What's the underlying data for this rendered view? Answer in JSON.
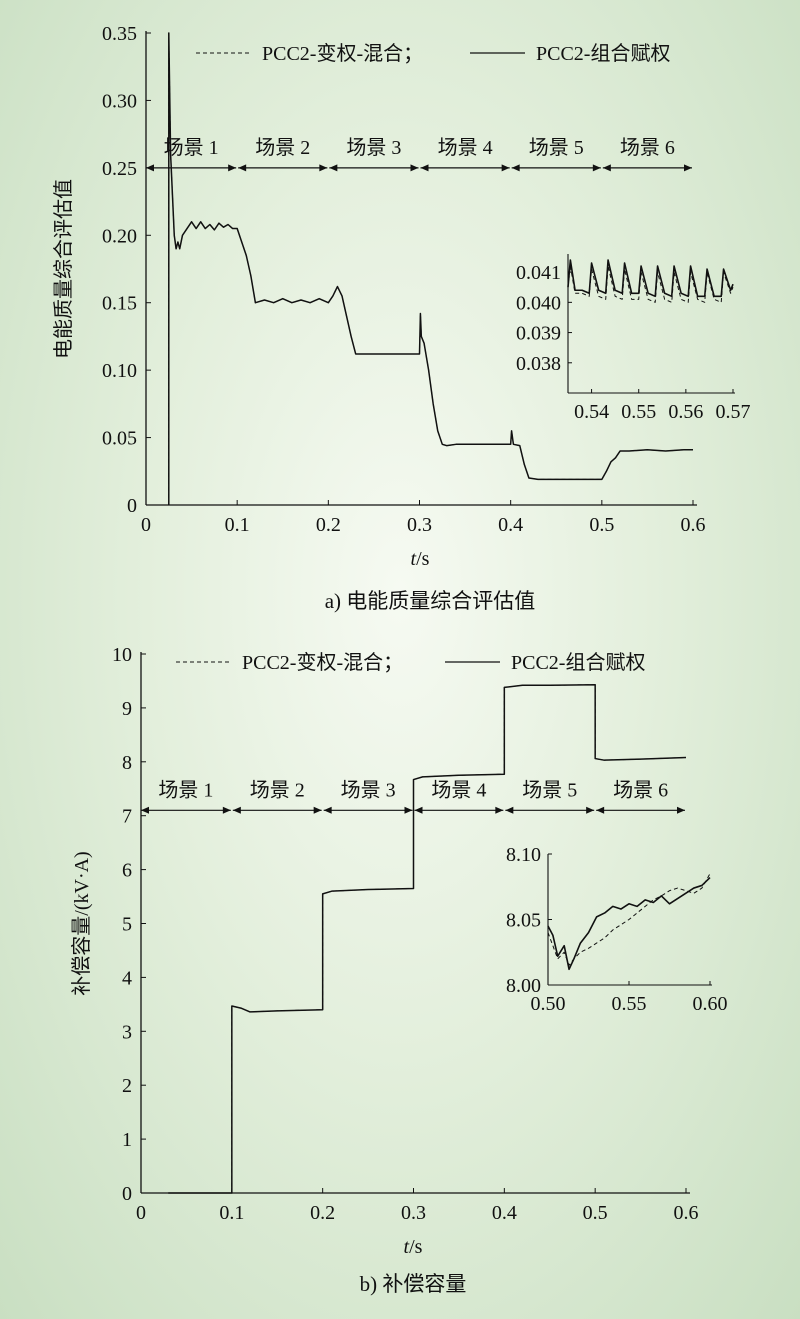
{
  "chart_data": [
    {
      "type": "line",
      "caption": "a) 电能质量综合评估值",
      "xlabel_italic": "t",
      "xlabel_unit": "/s",
      "ylabel": "电能质量综合评估值",
      "xlim": [
        0,
        0.6
      ],
      "ylim": [
        0,
        0.35
      ],
      "xticks": [
        "0",
        "0.1",
        "0.2",
        "0.3",
        "0.4",
        "0.5",
        "0.6"
      ],
      "yticks": [
        "0",
        "0.05",
        "0.10",
        "0.15",
        "0.20",
        "0.25",
        "0.30",
        "0.35"
      ],
      "legend": [
        "PCC2-变权-混合；",
        "PCC2-组合赋权"
      ],
      "scenes": [
        "场景 1",
        "场景 2",
        "场景 3",
        "场景 4",
        "场景 5",
        "场景 6"
      ],
      "scene_bounds": [
        0,
        0.1,
        0.2,
        0.3,
        0.4,
        0.5,
        0.6
      ],
      "scene_arrow_y": 0.25,
      "series": [
        {
          "name": "PCC2-组合赋权",
          "style": "solid",
          "x": [
            0.025,
            0.025,
            0.027,
            0.029,
            0.031,
            0.033,
            0.035,
            0.037,
            0.04,
            0.045,
            0.05,
            0.055,
            0.06,
            0.065,
            0.07,
            0.075,
            0.08,
            0.085,
            0.09,
            0.095,
            0.1,
            0.105,
            0.11,
            0.115,
            0.12,
            0.13,
            0.14,
            0.15,
            0.16,
            0.17,
            0.18,
            0.19,
            0.2,
            0.205,
            0.21,
            0.215,
            0.22,
            0.225,
            0.23,
            0.24,
            0.25,
            0.26,
            0.27,
            0.28,
            0.29,
            0.3,
            0.301,
            0.302,
            0.305,
            0.31,
            0.315,
            0.32,
            0.325,
            0.33,
            0.34,
            0.35,
            0.36,
            0.37,
            0.38,
            0.39,
            0.4,
            0.401,
            0.403,
            0.41,
            0.415,
            0.42,
            0.43,
            0.44,
            0.45,
            0.46,
            0.47,
            0.48,
            0.49,
            0.5,
            0.505,
            0.51,
            0.515,
            0.52,
            0.53,
            0.55,
            0.57,
            0.59,
            0.6
          ],
          "y": [
            0,
            0.35,
            0.26,
            0.23,
            0.2,
            0.19,
            0.195,
            0.19,
            0.2,
            0.205,
            0.21,
            0.205,
            0.21,
            0.205,
            0.208,
            0.204,
            0.209,
            0.206,
            0.208,
            0.205,
            0.205,
            0.195,
            0.185,
            0.17,
            0.15,
            0.152,
            0.15,
            0.153,
            0.15,
            0.152,
            0.15,
            0.153,
            0.15,
            0.155,
            0.162,
            0.155,
            0.14,
            0.125,
            0.112,
            0.112,
            0.112,
            0.112,
            0.112,
            0.112,
            0.112,
            0.112,
            0.142,
            0.125,
            0.12,
            0.1,
            0.075,
            0.055,
            0.045,
            0.044,
            0.045,
            0.045,
            0.045,
            0.045,
            0.045,
            0.045,
            0.045,
            0.055,
            0.045,
            0.044,
            0.03,
            0.02,
            0.019,
            0.019,
            0.019,
            0.019,
            0.019,
            0.019,
            0.019,
            0.019,
            0.025,
            0.032,
            0.035,
            0.04,
            0.04,
            0.041,
            0.04,
            0.041,
            0.041
          ]
        },
        {
          "name": "PCC2-变权-混合；",
          "style": "dashed",
          "x": [
            0.025,
            0.025,
            0.027,
            0.029,
            0.031,
            0.033,
            0.035,
            0.037,
            0.04,
            0.045,
            0.05,
            0.055,
            0.06,
            0.065,
            0.07,
            0.075,
            0.08,
            0.085,
            0.09,
            0.095,
            0.1,
            0.105,
            0.11,
            0.115,
            0.12,
            0.13,
            0.14,
            0.15,
            0.16,
            0.17,
            0.18,
            0.19,
            0.2,
            0.205,
            0.21,
            0.215,
            0.22,
            0.225,
            0.23,
            0.24,
            0.25,
            0.26,
            0.27,
            0.28,
            0.29,
            0.3,
            0.301,
            0.302,
            0.305,
            0.31,
            0.315,
            0.32,
            0.325,
            0.33,
            0.34,
            0.35,
            0.36,
            0.37,
            0.38,
            0.39,
            0.4,
            0.401,
            0.403,
            0.41,
            0.415,
            0.42,
            0.43,
            0.44,
            0.45,
            0.46,
            0.47,
            0.48,
            0.49,
            0.5,
            0.505,
            0.51,
            0.515,
            0.52,
            0.53,
            0.55,
            0.57,
            0.59,
            0.6
          ],
          "y": [
            0,
            0.35,
            0.26,
            0.23,
            0.2,
            0.19,
            0.195,
            0.19,
            0.2,
            0.205,
            0.21,
            0.205,
            0.21,
            0.205,
            0.208,
            0.204,
            0.209,
            0.206,
            0.208,
            0.205,
            0.205,
            0.195,
            0.185,
            0.17,
            0.15,
            0.152,
            0.15,
            0.153,
            0.15,
            0.152,
            0.15,
            0.153,
            0.15,
            0.155,
            0.162,
            0.155,
            0.14,
            0.125,
            0.112,
            0.112,
            0.112,
            0.112,
            0.112,
            0.112,
            0.112,
            0.112,
            0.142,
            0.125,
            0.12,
            0.1,
            0.075,
            0.055,
            0.045,
            0.044,
            0.045,
            0.045,
            0.045,
            0.045,
            0.045,
            0.045,
            0.045,
            0.055,
            0.045,
            0.044,
            0.03,
            0.02,
            0.019,
            0.019,
            0.019,
            0.019,
            0.019,
            0.019,
            0.019,
            0.019,
            0.025,
            0.032,
            0.035,
            0.04,
            0.04,
            0.041,
            0.04,
            0.041,
            0.041
          ]
        }
      ],
      "inset": {
        "xlim": [
          0.535,
          0.57
        ],
        "ylim": [
          0.037,
          0.0416
        ],
        "xticks": [
          "0.54",
          "0.55",
          "0.56",
          "0.57"
        ],
        "yticks": [
          "0.038",
          "0.039",
          "0.040",
          "0.041"
        ],
        "series": [
          {
            "name": "PCC2-组合赋权",
            "style": "solid",
            "x": [
              0.535,
              0.5355,
              0.5365,
              0.538,
              0.5395,
              0.54,
              0.5415,
              0.543,
              0.5435,
              0.545,
              0.5465,
              0.547,
              0.5485,
              0.55,
              0.5505,
              0.552,
              0.5535,
              0.554,
              0.5555,
              0.557,
              0.5575,
              0.559,
              0.5605,
              0.561,
              0.5625,
              0.564,
              0.5645,
              0.566,
              0.5675,
              0.568,
              0.5695,
              0.57
            ],
            "y": [
              0.0405,
              0.0414,
              0.0404,
              0.0404,
              0.0403,
              0.0413,
              0.0404,
              0.0403,
              0.0414,
              0.0404,
              0.0403,
              0.0413,
              0.0403,
              0.0403,
              0.0412,
              0.0403,
              0.0402,
              0.0412,
              0.0403,
              0.0402,
              0.0412,
              0.0403,
              0.0402,
              0.0412,
              0.0402,
              0.0402,
              0.0411,
              0.0402,
              0.0402,
              0.0411,
              0.0404,
              0.0406
            ]
          },
          {
            "name": "PCC2-变权-混合；",
            "style": "dashed",
            "x": [
              0.535,
              0.5355,
              0.5365,
              0.538,
              0.5395,
              0.54,
              0.5415,
              0.543,
              0.5435,
              0.545,
              0.5465,
              0.547,
              0.5485,
              0.55,
              0.5505,
              0.552,
              0.5535,
              0.554,
              0.5555,
              0.557,
              0.5575,
              0.559,
              0.5605,
              0.561,
              0.5625,
              0.564,
              0.5645,
              0.566,
              0.5675,
              0.568,
              0.5695,
              0.57
            ],
            "y": [
              0.0405,
              0.0412,
              0.0403,
              0.0403,
              0.0402,
              0.0411,
              0.0402,
              0.0401,
              0.0412,
              0.0402,
              0.0401,
              0.0411,
              0.0401,
              0.0401,
              0.041,
              0.0401,
              0.04,
              0.041,
              0.0401,
              0.04,
              0.041,
              0.0401,
              0.04,
              0.041,
              0.0401,
              0.04,
              0.041,
              0.0401,
              0.04,
              0.041,
              0.0403,
              0.0405
            ]
          }
        ]
      }
    },
    {
      "type": "line",
      "caption": "b) 补偿容量",
      "xlabel_italic": "t",
      "xlabel_unit": "/s",
      "ylabel": "补偿容量/(kV·A)",
      "xlim": [
        0,
        0.6
      ],
      "ylim": [
        0,
        10
      ],
      "xticks": [
        "0",
        "0.1",
        "0.2",
        "0.3",
        "0.4",
        "0.5",
        "0.6"
      ],
      "yticks": [
        "0",
        "1",
        "2",
        "3",
        "4",
        "5",
        "6",
        "7",
        "8",
        "9",
        "10"
      ],
      "legend": [
        "PCC2-变权-混合；",
        "PCC2-组合赋权"
      ],
      "scenes": [
        "场景 1",
        "场景 2",
        "场景 3",
        "场景 4",
        "场景 5",
        "场景 6"
      ],
      "scene_bounds": [
        0,
        0.1,
        0.2,
        0.3,
        0.4,
        0.5,
        0.6
      ],
      "scene_arrow_y": 7.1,
      "series": [
        {
          "name": "PCC2-组合赋权",
          "style": "solid",
          "x": [
            0.03,
            0.1,
            0.1,
            0.11,
            0.12,
            0.15,
            0.2,
            0.2,
            0.21,
            0.25,
            0.3,
            0.3,
            0.31,
            0.35,
            0.4,
            0.4,
            0.42,
            0.45,
            0.5,
            0.5,
            0.51,
            0.55,
            0.6
          ],
          "y": [
            0,
            0,
            3.47,
            3.43,
            3.36,
            3.38,
            3.4,
            5.55,
            5.6,
            5.63,
            5.65,
            7.67,
            7.72,
            7.75,
            7.77,
            9.38,
            9.42,
            9.42,
            9.43,
            8.06,
            8.03,
            8.05,
            8.08
          ]
        },
        {
          "name": "PCC2-变权-混合；",
          "style": "dashed",
          "x": [
            0.03,
            0.1,
            0.1,
            0.11,
            0.12,
            0.15,
            0.2,
            0.2,
            0.21,
            0.25,
            0.3,
            0.3,
            0.31,
            0.35,
            0.4,
            0.4,
            0.42,
            0.45,
            0.5,
            0.5,
            0.51,
            0.55,
            0.6
          ],
          "y": [
            0,
            0,
            3.47,
            3.43,
            3.36,
            3.38,
            3.4,
            5.55,
            5.6,
            5.63,
            5.65,
            7.67,
            7.72,
            7.75,
            7.77,
            9.38,
            9.42,
            9.42,
            9.43,
            8.06,
            8.03,
            8.05,
            8.08
          ]
        }
      ],
      "inset": {
        "xlim": [
          0.5,
          0.6
        ],
        "ylim": [
          8.0,
          8.1
        ],
        "xticks": [
          "0.50",
          "0.55",
          "0.60"
        ],
        "yticks": [
          "8.00",
          "8.05",
          "8.10"
        ],
        "series": [
          {
            "name": "PCC2-组合赋权",
            "style": "solid",
            "x": [
              0.5,
              0.503,
              0.506,
              0.51,
              0.513,
              0.516,
              0.52,
              0.525,
              0.53,
              0.535,
              0.54,
              0.545,
              0.55,
              0.555,
              0.56,
              0.565,
              0.57,
              0.575,
              0.58,
              0.585,
              0.59,
              0.595,
              0.6
            ],
            "y": [
              8.045,
              8.038,
              8.022,
              8.03,
              8.012,
              8.02,
              8.032,
              8.04,
              8.052,
              8.055,
              8.06,
              8.058,
              8.062,
              8.06,
              8.065,
              8.063,
              8.068,
              8.062,
              8.066,
              8.07,
              8.074,
              8.076,
              8.082
            ]
          },
          {
            "name": "PCC2-变权-混合；",
            "style": "dashed",
            "x": [
              0.5,
              0.503,
              0.506,
              0.51,
              0.513,
              0.516,
              0.52,
              0.525,
              0.53,
              0.535,
              0.54,
              0.545,
              0.55,
              0.555,
              0.56,
              0.565,
              0.57,
              0.575,
              0.58,
              0.585,
              0.59,
              0.595,
              0.6
            ],
            "y": [
              8.04,
              8.03,
              8.02,
              8.025,
              8.015,
              8.02,
              8.025,
              8.028,
              8.032,
              8.036,
              8.042,
              8.046,
              8.05,
              8.055,
              8.06,
              8.065,
              8.068,
              8.072,
              8.074,
              8.072,
              8.07,
              8.074,
              8.085
            ]
          }
        ]
      }
    }
  ]
}
